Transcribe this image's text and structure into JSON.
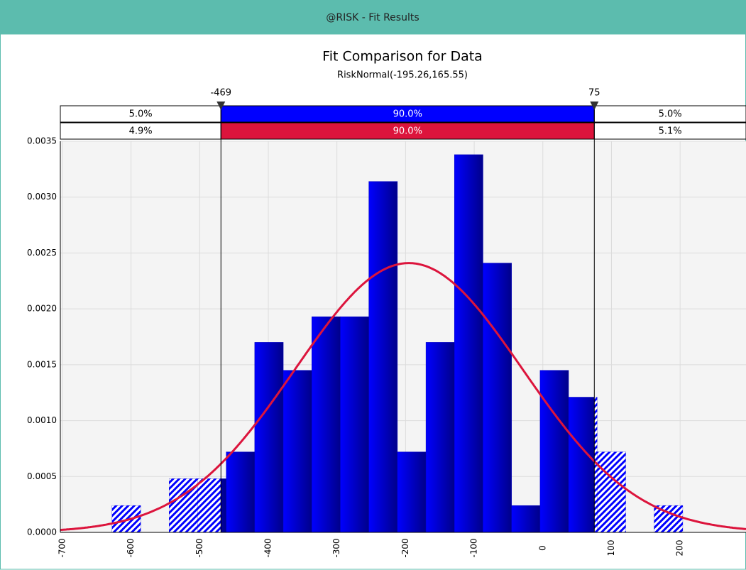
{
  "window_title": "@RISK - Fit Results",
  "chart_data": {
    "type": "histogram",
    "title": "Fit Comparison for Data",
    "subtitle": "RiskNormal(-195.26,165.55)",
    "bins": [
      -627.6,
      -586.0,
      -544.5,
      -502.9,
      -461.3,
      -419.8,
      -378.2,
      -336.6,
      -295.0,
      -253.5,
      -211.9,
      -170.3,
      -128.8,
      -87.2,
      -45.6,
      -4.0,
      37.5,
      79.1,
      120.7,
      162.2,
      203.8
    ],
    "values": [
      0.00024,
      0,
      0.00048,
      0.00048,
      0.00072,
      0.0017,
      0.00145,
      0.00193,
      0.00193,
      0.00314,
      0.00072,
      0.0017,
      0.00338,
      0.00241,
      0.00024,
      0.00145,
      0.00121,
      0.00072,
      0,
      0.00024
    ],
    "color": "#0000ff",
    "fit": {
      "mean": -195.26,
      "sd": 165.55,
      "color": "#dc143c"
    },
    "delimiters": [
      {
        "value": -469,
        "label": "-469"
      },
      {
        "value": 75,
        "label": "75"
      }
    ],
    "delimiter_rows": [
      {
        "color": "#0000ff",
        "values": [
          5.0,
          90.0,
          5.0
        ],
        "value_labels": [
          "5.0%",
          "90.0%",
          "5.0%"
        ]
      },
      {
        "color": "#dc143c",
        "values": [
          4.9,
          90.0,
          5.1
        ],
        "value_labels": [
          "4.9%",
          "90.0%",
          "5.1%"
        ]
      }
    ],
    "xlim": [
      -703,
      296
    ],
    "xticks": [
      -700,
      -600,
      -500,
      -400,
      -300,
      -200,
      -100,
      0,
      100,
      200
    ],
    "ylim": [
      0,
      0.0035
    ],
    "yticks": [
      {
        "value": 0,
        "label": "0.0000"
      },
      {
        "value": 0.0005,
        "label": "0.0005"
      },
      {
        "value": 0.001,
        "label": "0.0010"
      },
      {
        "value": 0.0015,
        "label": "0.0015"
      },
      {
        "value": 0.002,
        "label": "0.0020"
      },
      {
        "value": 0.0025,
        "label": "0.0025"
      },
      {
        "value": 0.003,
        "label": "0.0030"
      },
      {
        "value": 0.0035,
        "label": "0.0035"
      }
    ],
    "grid": true
  }
}
